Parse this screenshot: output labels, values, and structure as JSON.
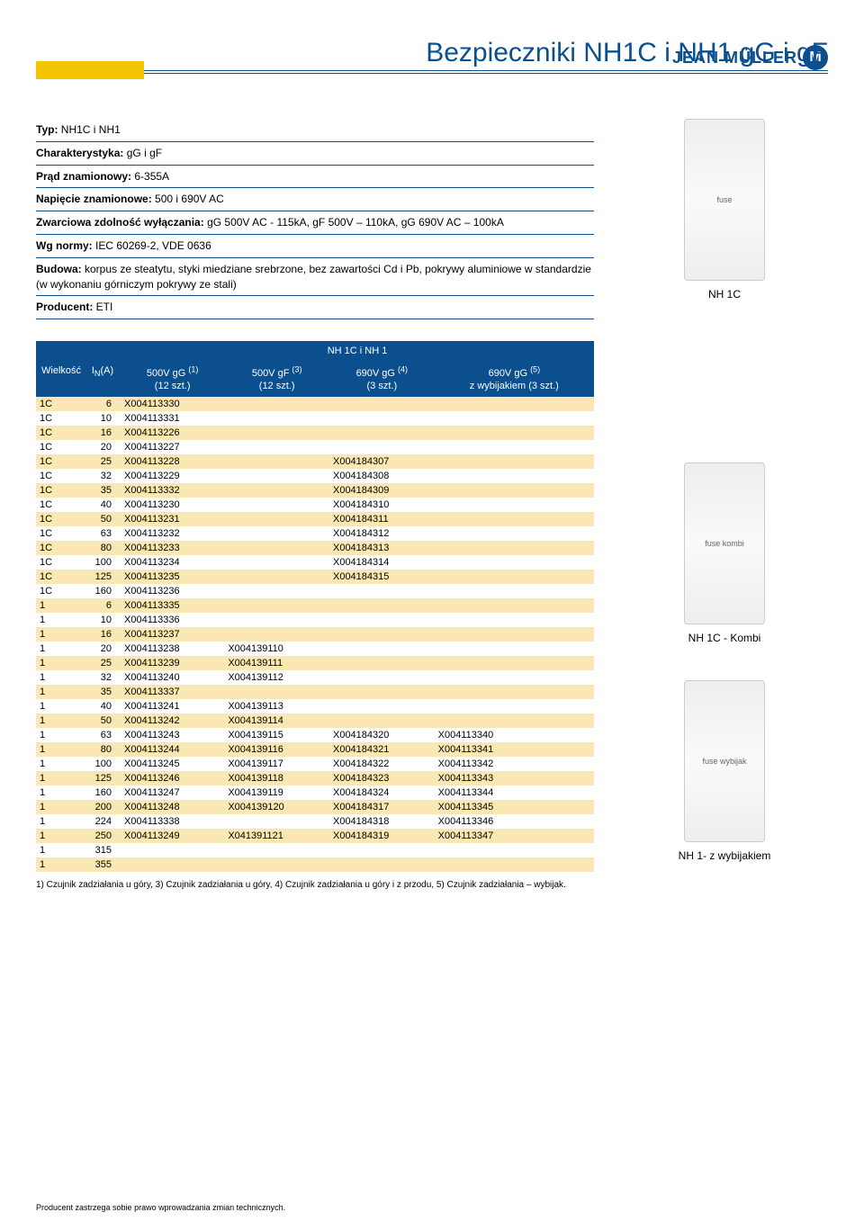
{
  "brand": {
    "name": "JEAN MÜLLER",
    "logo_text": "M"
  },
  "title": "Bezpieczniki NH1C i NH1 gG i gF",
  "specs": [
    {
      "label": "Typ:",
      "value": " NH1C i NH1"
    },
    {
      "label": "Charakterystyka:",
      "value": " gG i gF"
    },
    {
      "label": "Prąd znamionowy:",
      "value": " 6-355A"
    },
    {
      "label": "Napięcie znamionowe:",
      "value": " 500 i 690V AC"
    },
    {
      "label": "Zwarciowa zdolność wyłączania:",
      "value": " gG 500V AC - 115kA, gF 500V – 110kA, gG 690V AC – 100kA"
    },
    {
      "label": "Wg normy:",
      "value": " IEC 60269-2, VDE 0636"
    },
    {
      "label": "Budowa:",
      "value": " korpus ze steatytu, styki miedziane srebrzone, bez zawartości Cd i Pb, pokrywy aluminiowe w standardzie (w wykonaniu górniczym pokrywy ze stali)"
    },
    {
      "label": "Producent:",
      "value": " ETI"
    }
  ],
  "table": {
    "banner": "NH 1C i NH 1",
    "headers": {
      "c1": "Wielkość",
      "c2": "I<sub>N</sub>(A)",
      "c3a": "500V gG <sup>(1)</sup>",
      "c3b": "(12 szt.)",
      "c4a": "500V gF <sup>(3)</sup>",
      "c4b": "(12 szt.)",
      "c5a": "690V gG <sup>(4)</sup>",
      "c5b": "(3 szt.)",
      "c6a": "690V gG <sup>(5)</sup>",
      "c6b": "z wybijakiem (3 szt.)"
    },
    "rows": [
      [
        "1C",
        "6",
        "X004113330",
        "",
        "",
        ""
      ],
      [
        "1C",
        "10",
        "X004113331",
        "",
        "",
        ""
      ],
      [
        "1C",
        "16",
        "X004113226",
        "",
        "",
        ""
      ],
      [
        "1C",
        "20",
        "X004113227",
        "",
        "",
        ""
      ],
      [
        "1C",
        "25",
        "X004113228",
        "",
        "X004184307",
        ""
      ],
      [
        "1C",
        "32",
        "X004113229",
        "",
        "X004184308",
        ""
      ],
      [
        "1C",
        "35",
        "X004113332",
        "",
        "X004184309",
        ""
      ],
      [
        "1C",
        "40",
        "X004113230",
        "",
        "X004184310",
        ""
      ],
      [
        "1C",
        "50",
        "X004113231",
        "",
        "X004184311",
        ""
      ],
      [
        "1C",
        "63",
        "X004113232",
        "",
        "X004184312",
        ""
      ],
      [
        "1C",
        "80",
        "X004113233",
        "",
        "X004184313",
        ""
      ],
      [
        "1C",
        "100",
        "X004113234",
        "",
        "X004184314",
        ""
      ],
      [
        "1C",
        "125",
        "X004113235",
        "",
        "X004184315",
        ""
      ],
      [
        "1C",
        "160",
        "X004113236",
        "",
        "",
        ""
      ],
      [
        "1",
        "6",
        "X004113335",
        "",
        "",
        ""
      ],
      [
        "1",
        "10",
        "X004113336",
        "",
        "",
        ""
      ],
      [
        "1",
        "16",
        "X004113237",
        "",
        "",
        ""
      ],
      [
        "1",
        "20",
        "X004113238",
        "X004139110",
        "",
        ""
      ],
      [
        "1",
        "25",
        "X004113239",
        "X004139111",
        "",
        ""
      ],
      [
        "1",
        "32",
        "X004113240",
        "X004139112",
        "",
        ""
      ],
      [
        "1",
        "35",
        "X004113337",
        "",
        "",
        ""
      ],
      [
        "1",
        "40",
        "X004113241",
        "X004139113",
        "",
        ""
      ],
      [
        "1",
        "50",
        "X004113242",
        "X004139114",
        "",
        ""
      ],
      [
        "1",
        "63",
        "X004113243",
        "X004139115",
        "X004184320",
        "X004113340"
      ],
      [
        "1",
        "80",
        "X004113244",
        "X004139116",
        "X004184321",
        "X004113341"
      ],
      [
        "1",
        "100",
        "X004113245",
        "X004139117",
        "X004184322",
        "X004113342"
      ],
      [
        "1",
        "125",
        "X004113246",
        "X004139118",
        "X004184323",
        "X004113343"
      ],
      [
        "1",
        "160",
        "X004113247",
        "X004139119",
        "X004184324",
        "X004113344"
      ],
      [
        "1",
        "200",
        "X004113248",
        "X004139120",
        "X004184317",
        "X004113345"
      ],
      [
        "1",
        "224",
        "X004113338",
        "",
        "X004184318",
        "X004113346"
      ],
      [
        "1",
        "250",
        "X004113249",
        "X041391121",
        "X004184319",
        "X004113347"
      ],
      [
        "1",
        "315",
        "",
        "",
        "",
        ""
      ],
      [
        "1",
        "355",
        "",
        "",
        "",
        ""
      ]
    ],
    "alt_color": "#fbe7b3",
    "footnote": "1) Czujnik zadziałania u góry, 3) Czujnik zadziałania u góry, 4) Czujnik zadziałania u góry i z przodu, 5) Czujnik zadziałania – wybijak."
  },
  "captions": {
    "img1": "NH 1C",
    "img2": "NH 1C - Kombi",
    "img3": "NH 1- z wybijakiem"
  },
  "footer": "Producent zastrzega sobie prawo wprowadzania zmian technicznych."
}
